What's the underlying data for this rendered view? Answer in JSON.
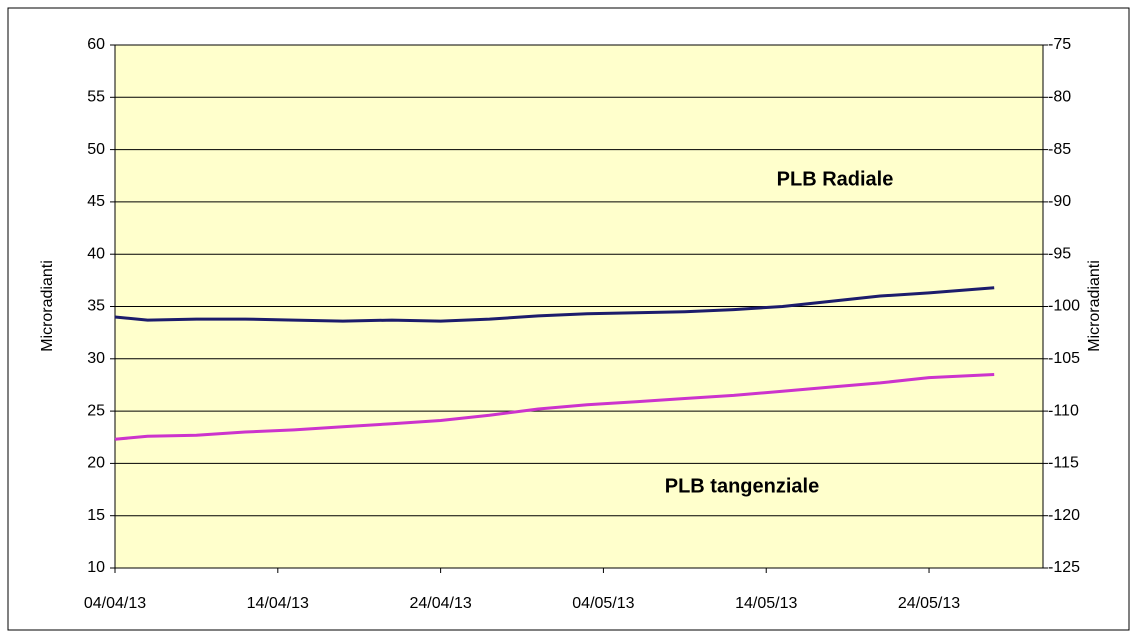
{
  "chart_data": {
    "type": "line",
    "y_label": "Microradianti",
    "y2_label": "Microradianti",
    "annotations": [
      "PLB Radiale",
      "PLB tangenziale"
    ],
    "x": [
      "04/04/13",
      "06/04/13",
      "09/04/13",
      "12/04/13",
      "15/04/13",
      "18/04/13",
      "21/04/13",
      "24/04/13",
      "27/04/13",
      "30/04/13",
      "03/05/13",
      "06/05/13",
      "09/05/13",
      "12/05/13",
      "15/05/13",
      "18/05/13",
      "21/05/13",
      "24/05/13",
      "28/05/13"
    ],
    "series": [
      {
        "name": "PLB Radiale",
        "color": "#1c1c6b",
        "values": [
          34.0,
          33.7,
          33.8,
          33.8,
          33.7,
          33.6,
          33.7,
          33.6,
          33.8,
          34.1,
          34.3,
          34.4,
          34.5,
          34.7,
          35.0,
          35.5,
          36.0,
          36.3,
          36.8
        ]
      },
      {
        "name": "PLB tangenziale",
        "color": "#cc33cc",
        "values": [
          22.3,
          22.6,
          22.7,
          23.0,
          23.2,
          23.5,
          23.8,
          24.1,
          24.6,
          25.2,
          25.6,
          25.9,
          26.2,
          26.5,
          26.9,
          27.3,
          27.7,
          28.2,
          28.5
        ]
      }
    ],
    "xlim": [
      "04/04/13",
      "31/05/13"
    ],
    "xticks": [
      "04/04/13",
      "14/04/13",
      "24/04/13",
      "04/05/13",
      "14/05/13",
      "24/05/13"
    ],
    "ylim": [
      10,
      60
    ],
    "yticks": [
      10,
      15,
      20,
      25,
      30,
      35,
      40,
      45,
      50,
      55,
      60
    ],
    "y2lim": [
      -125,
      -75
    ],
    "y2ticks": [
      -125,
      -120,
      -115,
      -110,
      -105,
      -100,
      -95,
      -90,
      -85,
      -80,
      -75
    ],
    "grid": true,
    "plot_background": "#ffffcc"
  }
}
